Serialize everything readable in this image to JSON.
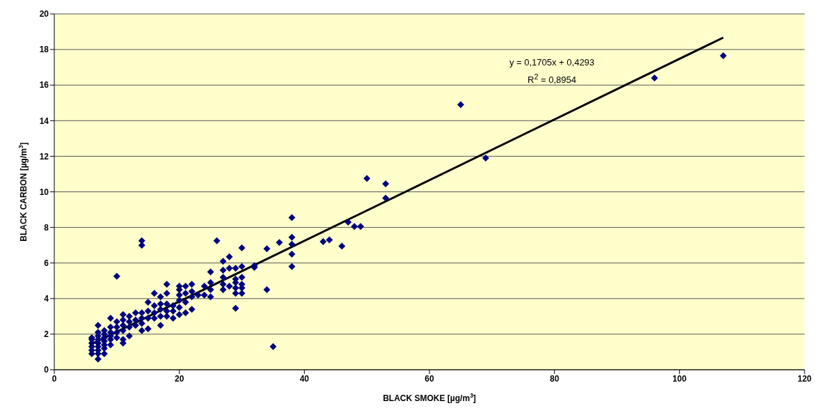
{
  "chart_data": {
    "type": "scatter",
    "xlabel": "BLACK SMOKE [µg/m$^{3}$]",
    "ylabel": "BLACK CARBON [µg/m$^{3}$]",
    "xlim": [
      0,
      120
    ],
    "xticks": [
      0,
      20,
      40,
      60,
      80,
      100,
      120
    ],
    "ylim": [
      0,
      20
    ],
    "yticks": [
      0,
      2,
      4,
      6,
      8,
      10,
      12,
      14,
      16,
      18,
      20
    ],
    "grid": "y",
    "annotations": [
      "y = 0,1705x + 0,4293",
      "R$^{2}$ = 0,8954"
    ],
    "series": [
      {
        "color": "#000080",
        "marker": "diamond",
        "x": [
          6,
          6,
          6,
          6,
          6,
          6,
          7,
          7,
          7,
          7,
          7,
          7,
          7,
          7,
          7,
          8,
          8,
          8,
          8,
          8,
          8,
          8,
          9,
          9,
          9,
          9,
          9,
          9,
          10,
          10,
          10,
          10,
          10,
          11,
          11,
          11,
          11,
          11,
          11,
          12,
          12,
          12,
          12,
          13,
          13,
          13,
          14,
          14,
          14,
          14,
          14,
          14,
          15,
          15,
          15,
          15,
          16,
          16,
          16,
          16,
          17,
          17,
          17,
          17,
          17,
          18,
          18,
          18,
          18,
          18,
          19,
          19,
          19,
          20,
          20,
          20,
          20,
          20,
          20,
          21,
          21,
          21,
          21,
          22,
          22,
          22,
          22,
          23,
          24,
          24,
          25,
          25,
          25,
          25,
          26,
          27,
          27,
          27,
          27,
          27,
          28,
          28,
          28,
          29,
          29,
          29,
          29,
          29,
          29,
          30,
          30,
          30,
          30,
          30,
          30,
          32,
          32,
          34,
          34,
          35,
          36,
          38,
          38,
          38,
          38,
          38,
          43,
          44,
          46,
          47,
          48,
          49,
          50,
          53,
          53,
          65,
          69,
          96,
          107
        ],
        "values": [
          0.9,
          1.1,
          1.3,
          1.5,
          1.7,
          1.8,
          0.6,
          0.9,
          1.1,
          1.3,
          1.5,
          1.7,
          1.9,
          2.1,
          2.5,
          0.9,
          1.2,
          1.4,
          1.6,
          1.8,
          2.0,
          2.2,
          1.4,
          1.7,
          1.9,
          2.1,
          2.4,
          2.9,
          1.8,
          2.1,
          2.4,
          2.7,
          5.25,
          1.5,
          1.7,
          2.2,
          2.5,
          2.8,
          3.1,
          1.9,
          2.4,
          2.7,
          3.0,
          2.5,
          2.8,
          3.2,
          2.2,
          2.6,
          2.9,
          3.2,
          7.0,
          7.25,
          2.3,
          2.9,
          3.3,
          3.8,
          2.9,
          3.2,
          3.6,
          4.3,
          2.5,
          3.0,
          3.4,
          3.7,
          4.1,
          3.0,
          3.3,
          3.7,
          4.3,
          4.8,
          2.9,
          3.3,
          3.6,
          3.1,
          3.5,
          3.9,
          4.2,
          4.5,
          4.7,
          3.2,
          3.8,
          4.3,
          4.7,
          3.4,
          4.1,
          4.4,
          4.8,
          4.2,
          4.2,
          4.7,
          4.1,
          4.5,
          4.9,
          5.5,
          7.25,
          4.5,
          4.8,
          5.2,
          5.6,
          6.1,
          4.7,
          5.7,
          6.35,
          3.45,
          4.3,
          4.6,
          4.9,
          5.1,
          5.7,
          4.3,
          4.6,
          4.8,
          5.2,
          5.8,
          6.85,
          5.75,
          5.85,
          4.5,
          6.8,
          1.3,
          7.15,
          5.8,
          6.5,
          7.05,
          7.45,
          8.55,
          7.2,
          7.3,
          6.95,
          8.3,
          8.05,
          8.05,
          10.75,
          10.45,
          9.65,
          14.9,
          11.9,
          16.4,
          17.65
        ]
      },
      {
        "type": "line",
        "marker": "none",
        "color": "#000000",
        "x": [
          6,
          107
        ],
        "values": [
          1.45,
          18.67
        ]
      }
    ]
  }
}
